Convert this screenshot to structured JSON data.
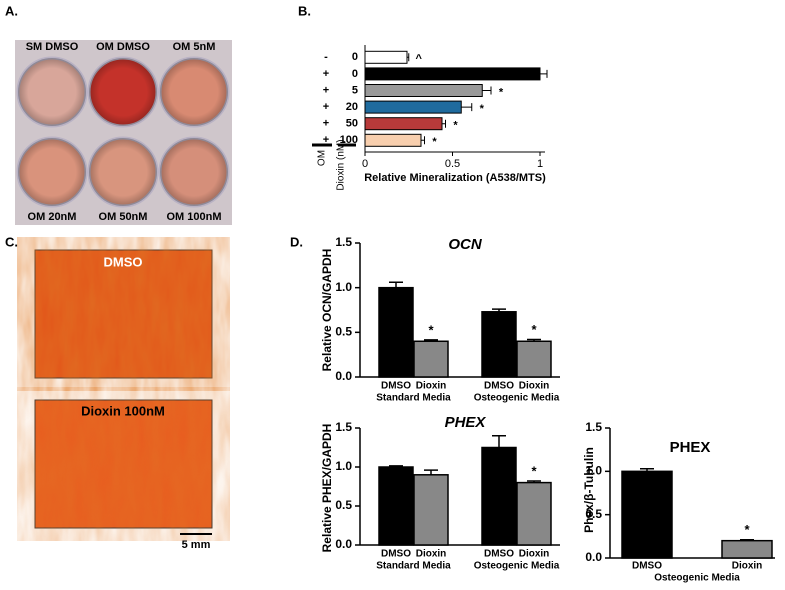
{
  "panel_labels": [
    "A.",
    "B.",
    "C.",
    "D."
  ],
  "plate": {
    "well_labels": [
      "SM DMSO",
      "OM DMSO",
      "OM 5nM",
      "OM 20nM",
      "OM 50nM",
      "OM 100nM"
    ]
  },
  "micrographs": {
    "labels": [
      "DMSO",
      "Dioxin 100nM"
    ],
    "scale_bar": "5 mm"
  },
  "chart_data": [
    {
      "type": "hbar",
      "x_label": "Relative Mineralization (A538/MTS)",
      "row_header": [
        "OM",
        "Dioxin (nM)"
      ],
      "om_signs": [
        "-",
        "+",
        "+",
        "+",
        "+",
        "+"
      ],
      "categories": [
        "0",
        "0",
        "5",
        "20",
        "50",
        "100"
      ],
      "values": [
        0.24,
        1.0,
        0.67,
        0.55,
        0.44,
        0.32
      ],
      "errors": [
        0.01,
        0.04,
        0.05,
        0.06,
        0.02,
        0.02
      ],
      "annotations": [
        "^",
        null,
        "*",
        "*",
        "*",
        "*"
      ],
      "colors": [
        "#ffffff",
        "#000000",
        "#999999",
        "#1f6b9e",
        "#b83a3a",
        "#f8cfae"
      ],
      "xlim": [
        0,
        1.0
      ],
      "xticks": [
        0,
        0.5,
        1
      ]
    },
    {
      "type": "bar",
      "title": "OCN",
      "y_label": "Relative OCN/GAPDH",
      "categories": [
        "DMSO",
        "Dioxin",
        "DMSO",
        "Dioxin"
      ],
      "group_labels": [
        "Standard Media",
        "Osteogenic Media"
      ],
      "values": [
        1.0,
        0.4,
        0.73,
        0.4
      ],
      "errors": [
        0.06,
        0.015,
        0.03,
        0.02
      ],
      "annotations": [
        null,
        "*",
        null,
        "*"
      ],
      "colors": [
        "#000000",
        "#888888",
        "#000000",
        "#888888"
      ],
      "ylim": [
        0,
        1.5
      ],
      "yticks": [
        {
          "value": 0,
          "label": "0.0"
        },
        0.5,
        {
          "value": 1,
          "label": "1.0"
        },
        1.5
      ]
    },
    {
      "type": "bar",
      "title": "PHEX",
      "y_label": "Relative PHEX/GAPDH",
      "categories": [
        "DMSO",
        "Dioxin",
        "DMSO",
        "Dioxin"
      ],
      "group_labels": [
        "Standard Media",
        "Osteogenic Media"
      ],
      "values": [
        1.0,
        0.9,
        1.25,
        0.8
      ],
      "errors": [
        0.015,
        0.06,
        0.15,
        0.02
      ],
      "annotations": [
        null,
        null,
        null,
        "*"
      ],
      "colors": [
        "#000000",
        "#888888",
        "#000000",
        "#888888"
      ],
      "ylim": [
        0,
        1.5
      ],
      "yticks": [
        {
          "value": 0,
          "label": "0.0"
        },
        0.5,
        {
          "value": 1,
          "label": "1.0"
        },
        1.5
      ]
    },
    {
      "type": "bar",
      "title": "PHEX",
      "y_label": "Phex/β-Tubulin",
      "categories": [
        "DMSO",
        "Dioxin"
      ],
      "group_labels": [
        "Osteogenic Media"
      ],
      "values": [
        1.0,
        0.2
      ],
      "errors": [
        0.03,
        0.01
      ],
      "annotations": [
        null,
        "*"
      ],
      "colors": [
        "#000000",
        "#888888"
      ],
      "ylim": [
        0,
        1.5
      ],
      "yticks": [
        {
          "value": 0,
          "label": "0.0"
        },
        0.5,
        {
          "value": 1,
          "label": "1.0"
        },
        1.5
      ]
    }
  ]
}
